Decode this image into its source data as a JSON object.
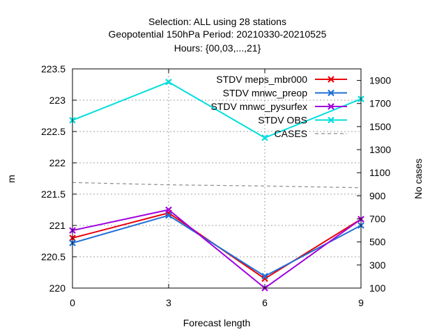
{
  "chart_data": {
    "type": "line",
    "title_lines": [
      "Selection: ALL using    28 stations",
      "Geopotential 150hPa   Period: 20210330-20210525",
      "Hours: {00,03,...,21}"
    ],
    "xlabel": "Forecast length",
    "ylabel": "m",
    "y2label": "No cases",
    "x": [
      0,
      3,
      6,
      9
    ],
    "xticks": [
      "0",
      "3",
      "6",
      "9"
    ],
    "xlim": [
      0,
      9
    ],
    "ylim": [
      220,
      223.5
    ],
    "yticks": [
      "220",
      "220.5",
      "221",
      "221.5",
      "222",
      "222.5",
      "223",
      "223.5"
    ],
    "y2lim": [
      100,
      2000
    ],
    "y2ticks": [
      "100",
      "300",
      "500",
      "700",
      "900",
      "1100",
      "1300",
      "1500",
      "1700",
      "1900"
    ],
    "grid": true,
    "legend_position": "top-right",
    "series": [
      {
        "name": "STDV meps_mbr000",
        "color": "#e8000b",
        "axis": "y",
        "marker": "x",
        "dash": false,
        "values": [
          220.8,
          221.2,
          220.15,
          221.1
        ]
      },
      {
        "name": "STDV mnwc_preop",
        "color": "#1f6fd6",
        "axis": "y",
        "marker": "x",
        "dash": false,
        "values": [
          220.72,
          221.16,
          220.19,
          221.0
        ]
      },
      {
        "name": "STDV mnwc_pysurfex",
        "color": "#a100e0",
        "axis": "y",
        "marker": "x",
        "dash": false,
        "values": [
          220.92,
          221.25,
          220.0,
          221.1
        ]
      },
      {
        "name": "STDV OBS",
        "color": "#00dede",
        "axis": "y",
        "marker": "x",
        "dash": false,
        "values": [
          222.68,
          223.29,
          222.4,
          223.02
        ]
      },
      {
        "name": "CASES",
        "color": "#8c8c8c",
        "axis": "y2",
        "marker": "none",
        "dash": true,
        "values": [
          1015,
          995,
          985,
          970
        ]
      }
    ]
  }
}
